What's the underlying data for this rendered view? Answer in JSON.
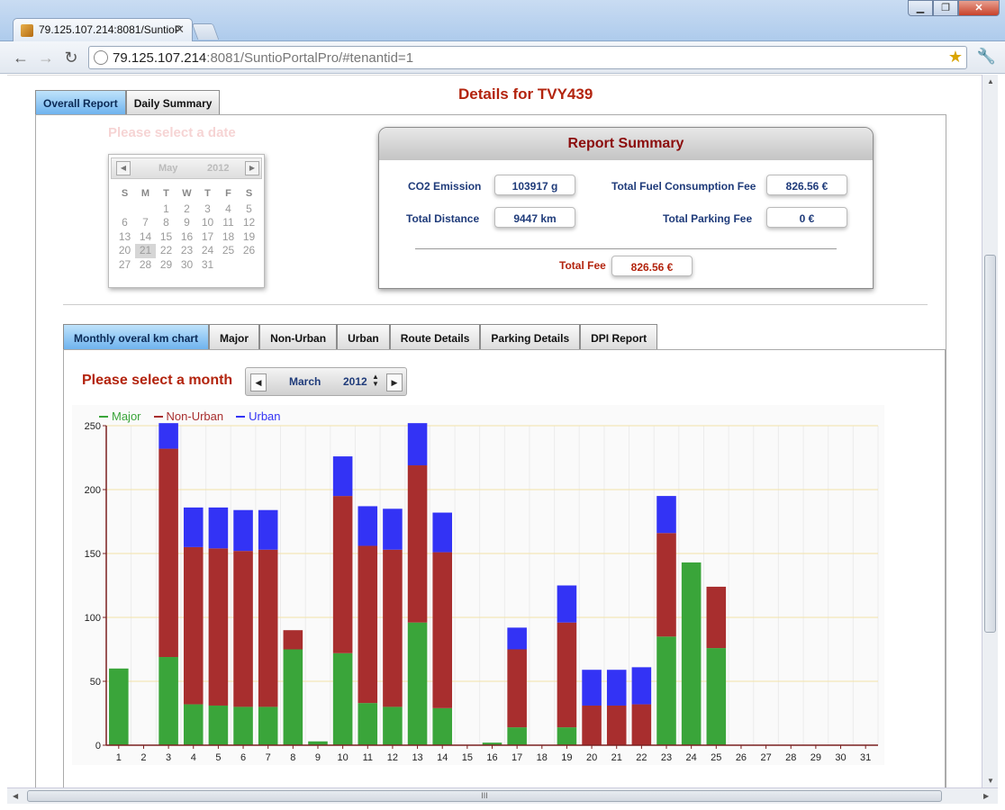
{
  "browser": {
    "tab_title": "79.125.107.214:8081/SuntioP",
    "url_host": "79.125.107.214",
    "url_rest": ":8081/SuntioPortalPro/#tenantid=1"
  },
  "page": {
    "title": "Details for TVY439",
    "tabs": [
      "Overall Report",
      "Daily Summary"
    ],
    "select_date_label": "Please select a date"
  },
  "calendar": {
    "month": "May",
    "year": "2012",
    "dow": [
      "S",
      "M",
      "T",
      "W",
      "T",
      "F",
      "S"
    ],
    "days": [
      "",
      "",
      "1",
      "2",
      "3",
      "4",
      "5",
      "6",
      "7",
      "8",
      "9",
      "10",
      "11",
      "12",
      "13",
      "14",
      "15",
      "16",
      "17",
      "18",
      "19",
      "20",
      "21",
      "22",
      "23",
      "24",
      "25",
      "26",
      "27",
      "28",
      "29",
      "30",
      "31"
    ],
    "selected": "21"
  },
  "summary": {
    "title": "Report Summary",
    "co2_label": "CO2 Emission",
    "co2_value": "103917 g",
    "distance_label": "Total Distance",
    "distance_value": "9447 km",
    "fuel_label": "Total Fuel Consumption Fee",
    "fuel_value": "826.56 €",
    "parking_label": "Total Parking Fee",
    "parking_value": "0 €",
    "total_label": "Total Fee",
    "total_value": "826.56 €"
  },
  "sub_tabs": [
    "Monthly overal km chart",
    "Major",
    "Non-Urban",
    "Urban",
    "Route Details",
    "Parking Details",
    "DPI Report"
  ],
  "month_picker": {
    "label": "Please select a month",
    "month": "March",
    "year": "2012"
  },
  "colors": {
    "major": "#3aa53a",
    "non_urban": "#a82e2e",
    "urban": "#3333f5",
    "accent_red": "#b3240e",
    "label_blue": "#1f3b7a"
  },
  "chart_data": {
    "type": "bar",
    "stacked": true,
    "categories": [
      "1",
      "2",
      "3",
      "4",
      "5",
      "6",
      "7",
      "8",
      "9",
      "10",
      "11",
      "12",
      "13",
      "14",
      "15",
      "16",
      "17",
      "18",
      "19",
      "20",
      "21",
      "22",
      "23",
      "24",
      "25",
      "26",
      "27",
      "28",
      "29",
      "30",
      "31"
    ],
    "series": [
      {
        "name": "Major",
        "color": "#3aa53a",
        "values": [
          60,
          0,
          69,
          32,
          31,
          30,
          30,
          75,
          3,
          72,
          33,
          30,
          96,
          29,
          0,
          2,
          14,
          0,
          14,
          0,
          0,
          0,
          85,
          143,
          76,
          0,
          0,
          0,
          0,
          0,
          0
        ]
      },
      {
        "name": "Non-Urban",
        "color": "#a82e2e",
        "values": [
          0,
          0,
          163,
          123,
          123,
          122,
          123,
          15,
          0,
          123,
          123,
          123,
          123,
          122,
          0,
          0,
          61,
          0,
          82,
          31,
          31,
          32,
          81,
          0,
          48,
          0,
          0,
          0,
          0,
          0,
          0
        ]
      },
      {
        "name": "Urban",
        "color": "#3333f5",
        "values": [
          0,
          0,
          20,
          31,
          32,
          32,
          31,
          0,
          0,
          31,
          31,
          32,
          33,
          31,
          0,
          0,
          17,
          0,
          29,
          28,
          28,
          29,
          29,
          0,
          0,
          0,
          0,
          0,
          0,
          0,
          0
        ]
      }
    ],
    "ylim": [
      0,
      250
    ],
    "yticks": [
      0,
      50,
      100,
      150,
      200,
      250
    ],
    "legend": "top-left",
    "grid": true
  }
}
